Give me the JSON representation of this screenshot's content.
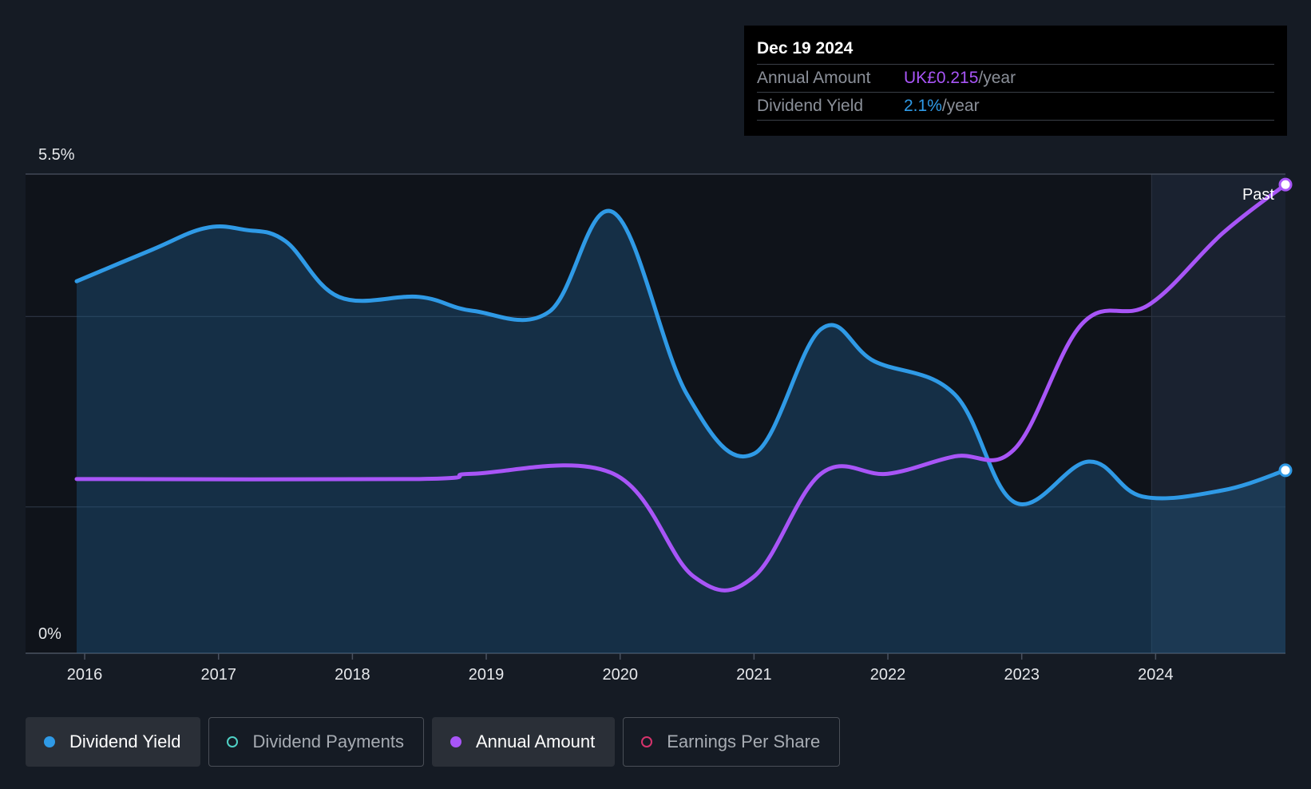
{
  "tooltip": {
    "date": "Dec 19 2024",
    "rows": [
      {
        "label": "Annual Amount",
        "value": "UK£0.215",
        "unit": "/year"
      },
      {
        "label": "Dividend Yield",
        "value": "2.1%",
        "unit": "/year"
      }
    ]
  },
  "past_label": "Past",
  "legend": [
    {
      "label": "Dividend Yield",
      "color": "#2f9ae6",
      "active": true,
      "filled": true
    },
    {
      "label": "Dividend Payments",
      "color": "#4fd1c5",
      "active": false,
      "filled": false
    },
    {
      "label": "Annual Amount",
      "color": "#a855f7",
      "active": true,
      "filled": true
    },
    {
      "label": "Earnings Per Share",
      "color": "#d6336c",
      "active": false,
      "filled": false
    }
  ],
  "chart_data": {
    "type": "line",
    "y_labels": [
      "5.5%",
      "0%"
    ],
    "ylim": [
      0,
      5.5
    ],
    "xlim": [
      2015.94,
      2024.97
    ],
    "x_ticks": [
      "2016",
      "2017",
      "2018",
      "2019",
      "2020",
      "2021",
      "2022",
      "2023",
      "2024"
    ],
    "grid": true,
    "forecast_start": 2023.97,
    "series": [
      {
        "name": "Dividend Yield",
        "color": "#2f9ae6",
        "area": true,
        "points": [
          [
            2015.94,
            4.27
          ],
          [
            2016.5,
            4.63
          ],
          [
            2016.9,
            4.88
          ],
          [
            2017.2,
            4.86
          ],
          [
            2017.5,
            4.73
          ],
          [
            2017.9,
            4.09
          ],
          [
            2018.5,
            4.09
          ],
          [
            2018.9,
            3.93
          ],
          [
            2019.47,
            3.92
          ],
          [
            2019.95,
            5.06
          ],
          [
            2020.5,
            2.97
          ],
          [
            2021.0,
            2.29
          ],
          [
            2021.5,
            3.72
          ],
          [
            2021.9,
            3.35
          ],
          [
            2022.5,
            2.97
          ],
          [
            2022.95,
            1.73
          ],
          [
            2023.5,
            2.2
          ],
          [
            2023.9,
            1.8
          ],
          [
            2024.5,
            1.87
          ],
          [
            2024.97,
            2.1
          ]
        ]
      },
      {
        "name": "Annual Amount",
        "color": "#a855f7",
        "area": false,
        "points": [
          [
            2015.94,
            2.0
          ],
          [
            2018.5,
            2.0
          ],
          [
            2018.9,
            2.06
          ],
          [
            2019.95,
            2.06
          ],
          [
            2020.55,
            0.88
          ],
          [
            2021.0,
            0.88
          ],
          [
            2021.5,
            2.06
          ],
          [
            2022.0,
            2.06
          ],
          [
            2022.5,
            2.26
          ],
          [
            2022.95,
            2.35
          ],
          [
            2023.45,
            3.78
          ],
          [
            2023.95,
            4.0
          ],
          [
            2024.5,
            4.82
          ],
          [
            2024.97,
            5.38
          ]
        ]
      }
    ]
  }
}
